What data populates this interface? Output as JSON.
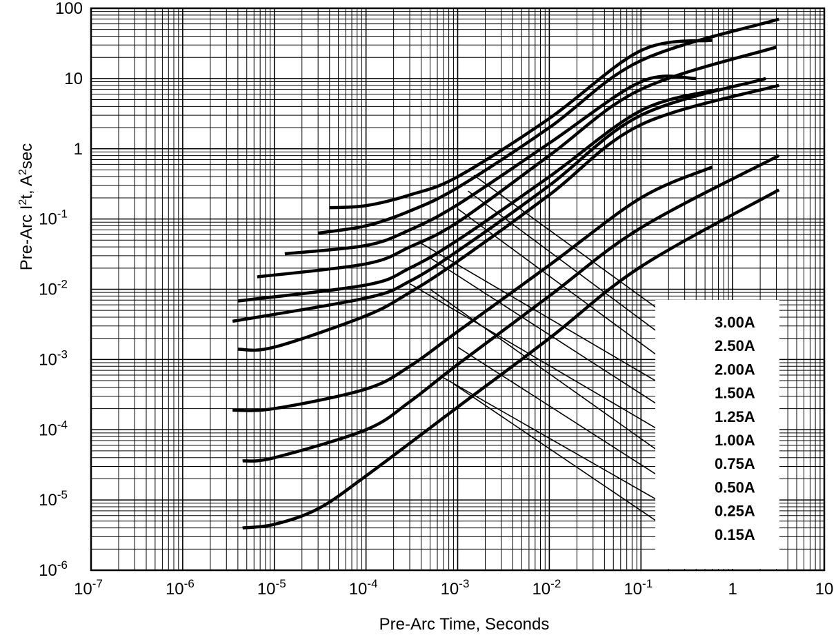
{
  "chart_data": {
    "type": "line",
    "x_scale": "log",
    "y_scale": "log",
    "xlim": [
      1e-07,
      10
    ],
    "ylim": [
      1e-06,
      100
    ],
    "grid": true,
    "legend_position": "bottom-right",
    "xlabel": "Pre-Arc Time, Seconds",
    "ylabel": {
      "part1": "Pre-Arc I",
      "sup1": "2",
      "part2": "t, A",
      "sup2": "2",
      "part3": "sec"
    },
    "x_ticks": [
      {
        "base": "10",
        "exp": "-7"
      },
      {
        "base": "10",
        "exp": "-6"
      },
      {
        "base": "10",
        "exp": "-5"
      },
      {
        "base": "10",
        "exp": "-4"
      },
      {
        "base": "10",
        "exp": "-3"
      },
      {
        "base": "10",
        "exp": "-2"
      },
      {
        "base": "10",
        "exp": "-1"
      },
      {
        "base": "1",
        "exp": ""
      },
      {
        "base": "10",
        "exp": ""
      }
    ],
    "y_ticks": [
      {
        "base": "100",
        "exp": ""
      },
      {
        "base": "10",
        "exp": ""
      },
      {
        "base": "1",
        "exp": ""
      },
      {
        "base": "10",
        "exp": "-1"
      },
      {
        "base": "10",
        "exp": "-2"
      },
      {
        "base": "10",
        "exp": "-3"
      },
      {
        "base": "10",
        "exp": "-4"
      },
      {
        "base": "10",
        "exp": "-5"
      },
      {
        "base": "10",
        "exp": "-6"
      }
    ],
    "series": [
      {
        "name": "3.00A",
        "points": [
          [
            4e-05,
            0.145
          ],
          [
            0.0001,
            0.155
          ],
          [
            0.0003,
            0.22
          ],
          [
            0.001,
            0.4
          ],
          [
            0.01,
            2.7
          ],
          [
            0.1,
            25
          ],
          [
            0.6,
            35
          ]
        ]
      },
      {
        "name": "2.50A",
        "points": [
          [
            3e-05,
            0.063
          ],
          [
            0.0001,
            0.08
          ],
          [
            0.0003,
            0.13
          ],
          [
            0.001,
            0.28
          ],
          [
            0.01,
            2.0
          ],
          [
            0.1,
            18
          ],
          [
            3.2,
            70
          ]
        ]
      },
      {
        "name": "2.00A",
        "points": [
          [
            1.3e-05,
            0.032
          ],
          [
            0.0001,
            0.042
          ],
          [
            0.0003,
            0.07
          ],
          [
            0.001,
            0.16
          ],
          [
            0.01,
            1.2
          ],
          [
            0.1,
            9
          ],
          [
            0.4,
            10
          ]
        ]
      },
      {
        "name": "1.50A",
        "points": [
          [
            6.5e-06,
            0.015
          ],
          [
            0.0001,
            0.023
          ],
          [
            0.0003,
            0.04
          ],
          [
            0.001,
            0.09
          ],
          [
            0.01,
            0.8
          ],
          [
            0.1,
            7
          ],
          [
            3,
            28
          ]
        ]
      },
      {
        "name": "1.25A",
        "points": [
          [
            4e-06,
            0.0068
          ],
          [
            0.0001,
            0.0115
          ],
          [
            0.0003,
            0.02
          ],
          [
            0.001,
            0.05
          ],
          [
            0.01,
            0.4
          ],
          [
            0.1,
            3.5
          ],
          [
            0.7,
            7
          ]
        ]
      },
      {
        "name": "1.00A",
        "points": [
          [
            3.5e-06,
            0.0035
          ],
          [
            0.0001,
            0.0075
          ],
          [
            0.0003,
            0.013
          ],
          [
            0.001,
            0.035
          ],
          [
            0.01,
            0.3
          ],
          [
            0.1,
            3
          ],
          [
            2.3,
            10
          ]
        ]
      },
      {
        "name": "0.75A",
        "points": [
          [
            4e-06,
            0.0014
          ],
          [
            1e-05,
            0.0015
          ],
          [
            0.0001,
            0.0042
          ],
          [
            0.0003,
            0.009
          ],
          [
            0.001,
            0.025
          ],
          [
            0.01,
            0.22
          ],
          [
            0.1,
            2.2
          ],
          [
            3.2,
            8
          ]
        ]
      },
      {
        "name": "0.50A",
        "points": [
          [
            3.5e-06,
            0.00019
          ],
          [
            1e-05,
            0.0002
          ],
          [
            0.0001,
            0.00038
          ],
          [
            0.0003,
            0.0008
          ],
          [
            0.001,
            0.0025
          ],
          [
            0.01,
            0.022
          ],
          [
            0.1,
            0.2
          ],
          [
            0.6,
            0.55
          ]
        ]
      },
      {
        "name": "0.25A",
        "points": [
          [
            4.5e-06,
            3.6e-05
          ],
          [
            1e-05,
            4e-05
          ],
          [
            0.0001,
            0.0001
          ],
          [
            0.0003,
            0.00025
          ],
          [
            0.001,
            0.00085
          ],
          [
            0.01,
            0.008
          ],
          [
            0.1,
            0.075
          ],
          [
            3.2,
            0.8
          ]
        ]
      },
      {
        "name": "0.15A",
        "points": [
          [
            4.5e-06,
            4e-06
          ],
          [
            1e-05,
            4.5e-06
          ],
          [
            3e-05,
            7.5e-06
          ],
          [
            0.0001,
            2.2e-05
          ],
          [
            0.001,
            0.00021
          ],
          [
            0.01,
            0.002
          ],
          [
            0.1,
            0.021
          ],
          [
            3.2,
            0.26
          ]
        ]
      }
    ],
    "leader_lines": [
      {
        "label": "3.00A",
        "curve_point": [
          0.0015,
          0.42
        ]
      },
      {
        "label": "2.50A",
        "curve_point": [
          0.0013,
          0.25
        ]
      },
      {
        "label": "2.00A",
        "curve_point": [
          0.001,
          0.14
        ]
      },
      {
        "label": "1.50A",
        "curve_point": [
          0.0004,
          0.045
        ]
      },
      {
        "label": "1.25A",
        "curve_point": [
          0.0005,
          0.028
        ]
      },
      {
        "label": "1.00A",
        "curve_point": [
          0.0003,
          0.012
        ]
      },
      {
        "label": "0.75A",
        "curve_point": [
          0.0005,
          0.01
        ]
      },
      {
        "label": "0.50A",
        "curve_point": [
          0.001,
          0.0015
        ]
      },
      {
        "label": "0.25A",
        "curve_point": [
          0.0007,
          0.00055
        ]
      },
      {
        "label": "0.15A",
        "curve_point": [
          0.0009,
          0.00045
        ]
      }
    ]
  }
}
